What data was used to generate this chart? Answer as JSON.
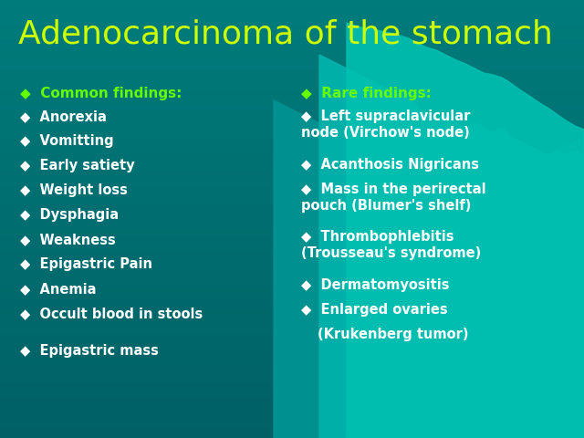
{
  "title": "Adenocarcinoma of the stomach",
  "title_color": "#CCFF00",
  "title_fontsize": 26,
  "bg_color": "#007B7B",
  "text_color_white": "#FFFFFF",
  "text_color_green": "#66FF00",
  "header_fontsize": 11,
  "item_fontsize": 10.5,
  "left_header": "Common findings:",
  "left_items": [
    "Anorexia",
    "Vomitting",
    "Early satiety",
    "Weight loss",
    "Dysphagia",
    "Weakness",
    "Epigastric Pain",
    "Anemia",
    "Occult blood in stools",
    "",
    "Epigastric mass"
  ],
  "right_header": "Rare findings:",
  "right_items": [
    [
      "Left supraclavicular\nnode (Virchow's node)",
      true
    ],
    [
      "Acanthosis Nigricans",
      false
    ],
    [
      "Mass in the perirectal\npouch (Blumer's shelf)",
      true
    ],
    [
      "Thrombophlebitis\n(Trousseau's syndrome)",
      true
    ],
    [
      "Dermatomyositis",
      false
    ],
    [
      "Enlarged ovaries",
      false
    ],
    [
      "(Krukenberg tumor)",
      false
    ]
  ],
  "mountain_color1": "#00AAAA",
  "mountain_color2": "#009999"
}
